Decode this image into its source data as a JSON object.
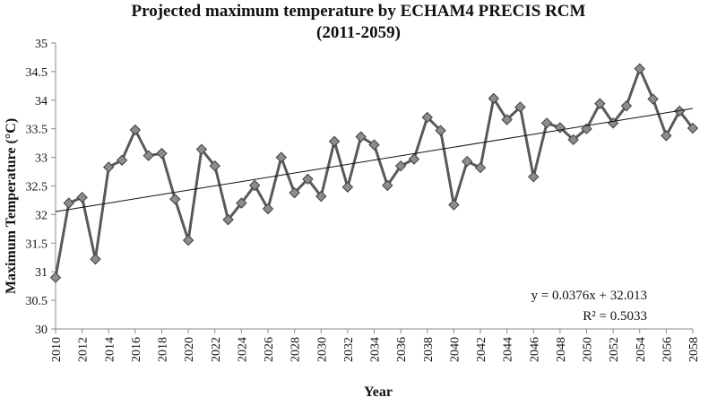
{
  "chart_data": {
    "type": "line",
    "title": "Projected maximum temperature by ECHAM4 PRECIS RCM",
    "subtitle": "(2011-2059)",
    "xlabel": "Year",
    "ylabel": "Maximum Temperature (°C)",
    "xlim": [
      2010,
      2058
    ],
    "ylim": [
      30,
      35
    ],
    "y_ticks": [
      "30",
      "30.5",
      "31",
      "31.5",
      "32",
      "32.5",
      "33",
      "33.5",
      "34",
      "34.5",
      "35"
    ],
    "x_ticks": [
      "2010",
      "2012",
      "2014",
      "2016",
      "2018",
      "2020",
      "2022",
      "2024",
      "2026",
      "2028",
      "2030",
      "2032",
      "2034",
      "2036",
      "2038",
      "2040",
      "2042",
      "2044",
      "2046",
      "2048",
      "2050",
      "2052",
      "2054",
      "2056",
      "2058"
    ],
    "grid": false,
    "legend": "none",
    "series": [
      {
        "x": [
          2010,
          2011,
          2012,
          2013,
          2014,
          2015,
          2016,
          2017,
          2018,
          2019,
          2020,
          2021,
          2022,
          2023,
          2024,
          2025,
          2026,
          2027,
          2028,
          2029,
          2030,
          2031,
          2032,
          2033,
          2034,
          2035,
          2036,
          2037,
          2038,
          2039,
          2040,
          2041,
          2042,
          2043,
          2044,
          2045,
          2046,
          2047,
          2048,
          2049,
          2050,
          2051,
          2052,
          2053,
          2054,
          2055,
          2056,
          2057,
          2058
        ],
        "values": [
          30.9,
          32.2,
          32.3,
          31.22,
          32.83,
          32.95,
          33.48,
          33.03,
          33.07,
          32.27,
          31.55,
          33.14,
          32.85,
          31.91,
          32.2,
          32.51,
          32.1,
          33.0,
          32.38,
          32.62,
          32.32,
          33.28,
          32.48,
          33.36,
          33.22,
          32.51,
          32.85,
          32.97,
          33.7,
          33.47,
          32.17,
          32.93,
          32.82,
          34.03,
          33.66,
          33.88,
          32.66,
          33.6,
          33.52,
          33.31,
          33.5,
          33.94,
          33.6,
          33.9,
          34.55,
          34.02,
          33.38,
          33.81,
          33.51
        ]
      }
    ],
    "trendline": {
      "slope": 0.0376,
      "intercept": 32.013
    },
    "annotations": [
      "y = 0.0376x + 32.013",
      "R² = 0.5033"
    ],
    "colors": {
      "line": "#595959",
      "marker": "#8c8c8c",
      "marker_stroke": "#3f3f3f",
      "trendline": "#111111",
      "axis": "#8a8a8a"
    }
  }
}
